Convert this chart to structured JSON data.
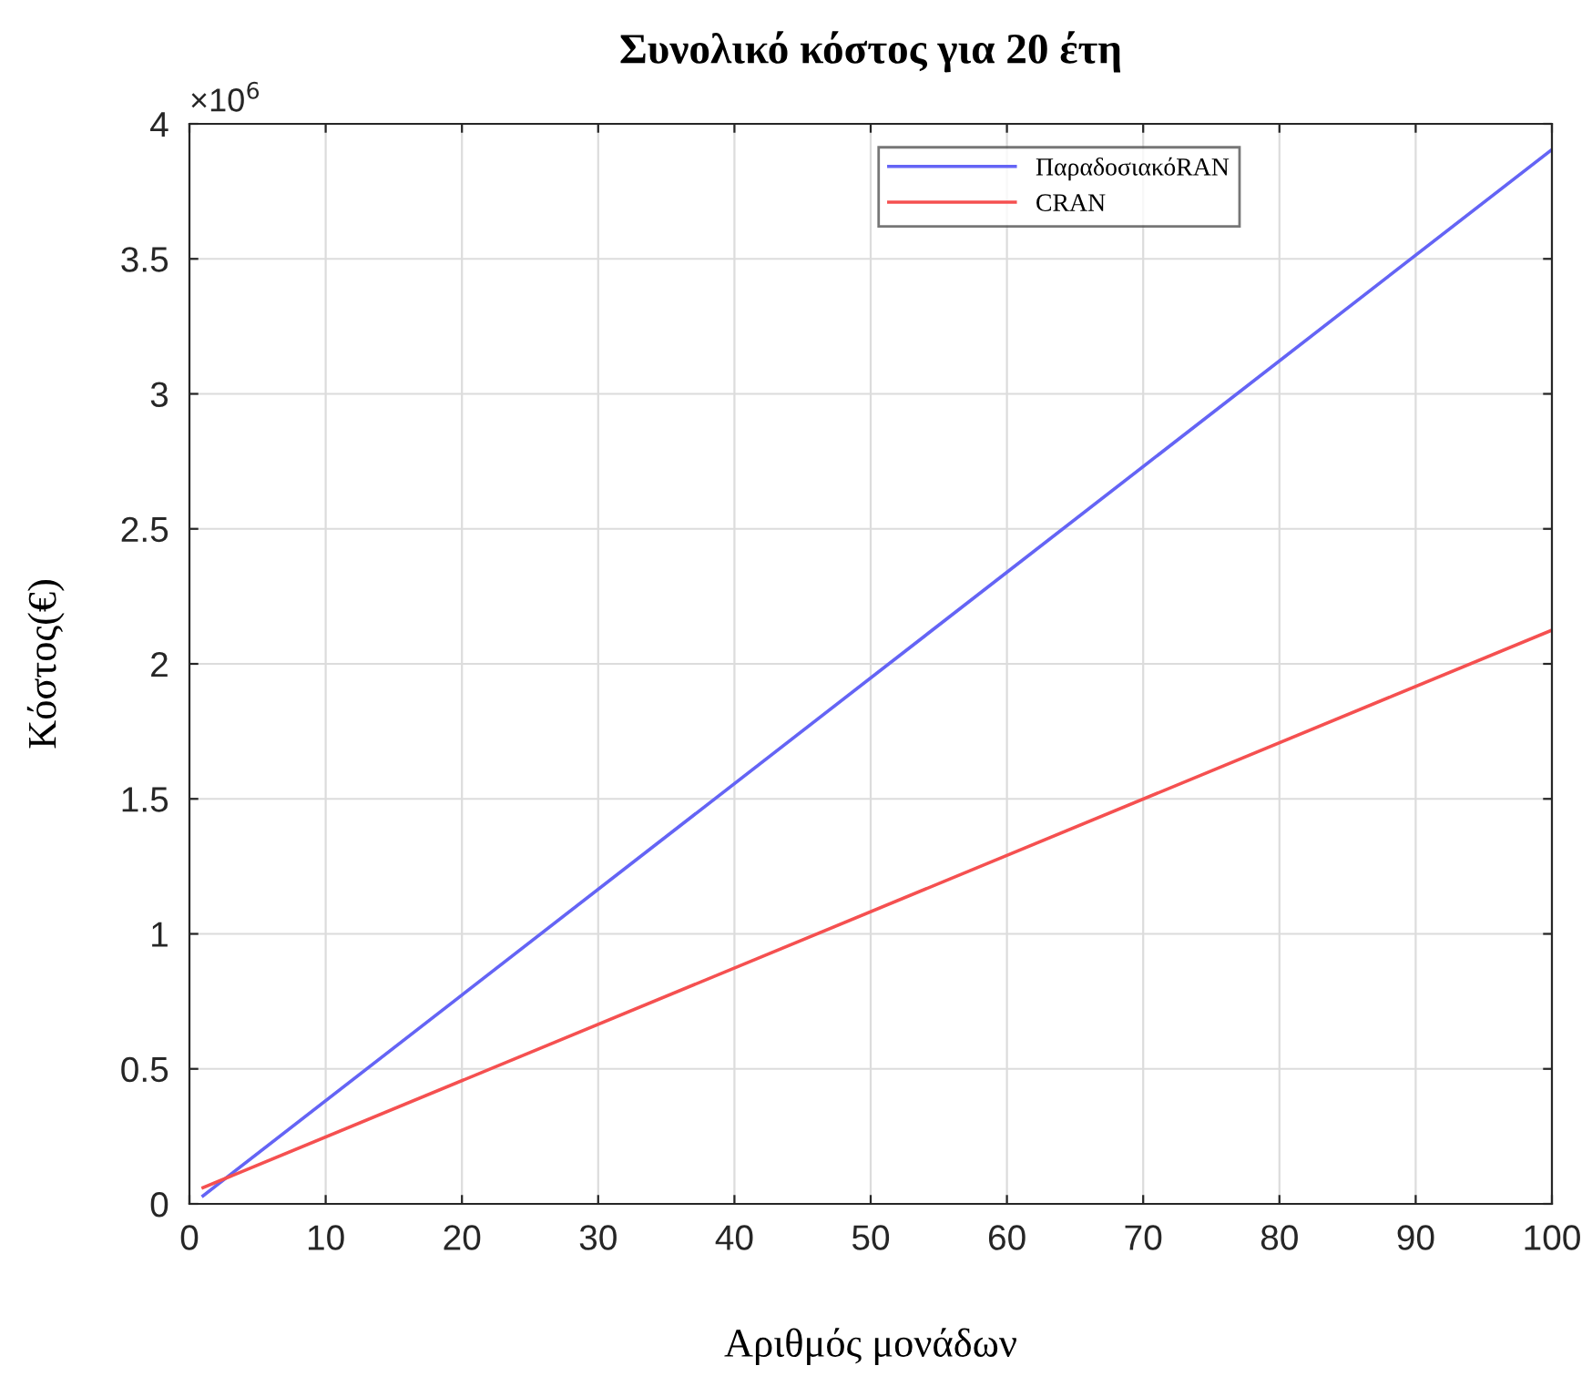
{
  "chart_data": {
    "type": "line",
    "title": "Συνολικό κόστος για 20 έτη",
    "xlabel": "Αριθμός μονάδων",
    "ylabel": "Κόστος(€)",
    "x": [
      1,
      100
    ],
    "series": [
      {
        "name": "ΠαραδοσιακόRAN",
        "color": "#6464f5",
        "values": [
          0.03,
          3.905
        ]
      },
      {
        "name": "CRAN",
        "color": "#f55050",
        "values": [
          0.06,
          2.125
        ]
      }
    ],
    "xlim": [
      0,
      100
    ],
    "xticks": [
      0,
      10,
      20,
      30,
      40,
      50,
      60,
      70,
      80,
      90,
      100
    ],
    "ylim": [
      0,
      4
    ],
    "yticks": [
      0,
      0.5,
      1,
      1.5,
      2,
      2.5,
      3,
      3.5,
      4
    ],
    "annotations": [
      "×10$^{6}$"
    ],
    "grid": true,
    "legend": "top right",
    "marker": "none",
    "line_style": "solid"
  }
}
